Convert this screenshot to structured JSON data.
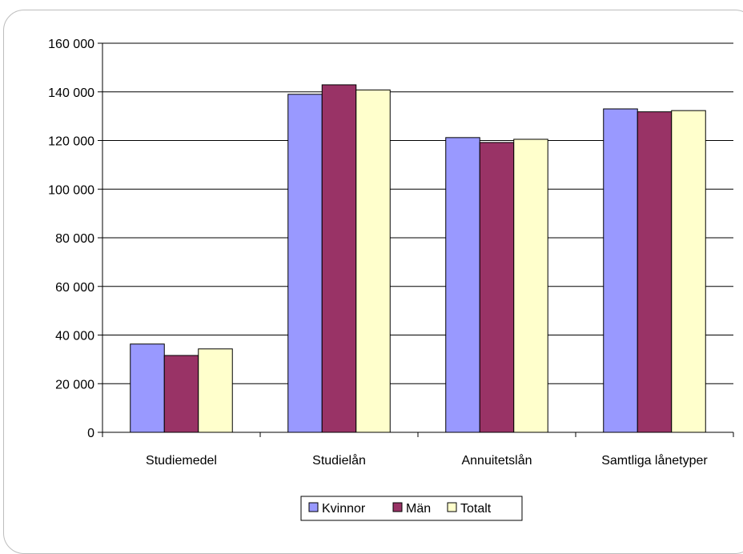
{
  "chart_data": {
    "type": "bar",
    "title": "",
    "xlabel": "",
    "ylabel": "",
    "categories": [
      "Studiemedel",
      "Studielån",
      "Annuitetslån",
      "Samtliga lånetyper"
    ],
    "series": [
      {
        "name": "Kvinnor",
        "color": "#9999FF",
        "values": [
          36300,
          139000,
          121200,
          133000
        ]
      },
      {
        "name": "Män",
        "color": "#993366",
        "values": [
          31600,
          142900,
          119200,
          131800
        ]
      },
      {
        "name": "Totalt",
        "color": "#FFFFCC",
        "values": [
          34300,
          140800,
          120500,
          132300
        ]
      }
    ],
    "ylim": [
      0,
      160000
    ],
    "yticks": [
      0,
      20000,
      40000,
      60000,
      80000,
      100000,
      120000,
      140000,
      160000
    ],
    "ytick_labels": [
      "0",
      "20 000",
      "40 000",
      "60 000",
      "80 000",
      "100 000",
      "120 000",
      "140 000",
      "160 000"
    ],
    "grid": true,
    "legend_position": "bottom"
  }
}
